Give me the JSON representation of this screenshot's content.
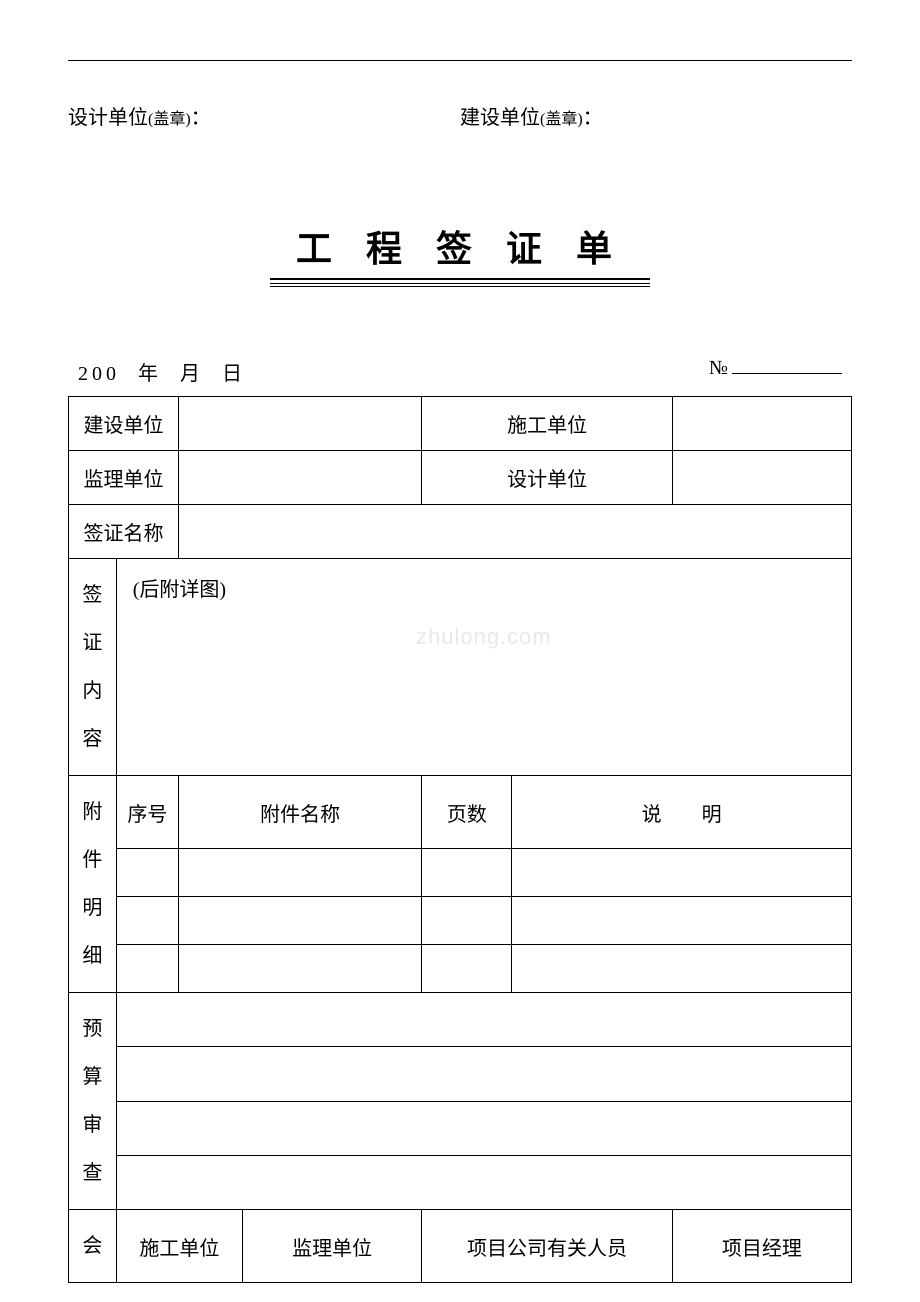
{
  "header": {
    "design_unit_label": "设计单位",
    "construction_unit_label": "建设单位",
    "stamp_note": "(盖章)",
    "colon": "："
  },
  "title": "工 程 签 证 单",
  "date_line": {
    "year_prefix": "200",
    "year": "年",
    "month": "月",
    "day": "日",
    "number_label": "№"
  },
  "form": {
    "construction_unit": "建设单位",
    "contractor_unit": "施工单位",
    "supervision_unit": "监理单位",
    "design_unit": "设计单位",
    "visa_name": "签证名称",
    "visa_content_label": "签证内容",
    "visa_content_v1": "签",
    "visa_content_v2": "证",
    "visa_content_v3": "内",
    "visa_content_v4": "容",
    "content_note": "(后附详图)",
    "watermark": "zhulong.com",
    "attachment_v1": "附",
    "attachment_v2": "件",
    "attachment_v3": "明",
    "attachment_v4": "细",
    "seq_no": "序号",
    "attachment_name": "附件名称",
    "pages": "页数",
    "description": "说　　明",
    "budget_v1": "预",
    "budget_v2": "算",
    "budget_v3": "审",
    "budget_v4": "查",
    "meeting": "会",
    "contractor": "施工单位",
    "supervisor": "监理单位",
    "project_staff": "项目公司有关人员",
    "project_manager": "项目经理"
  }
}
